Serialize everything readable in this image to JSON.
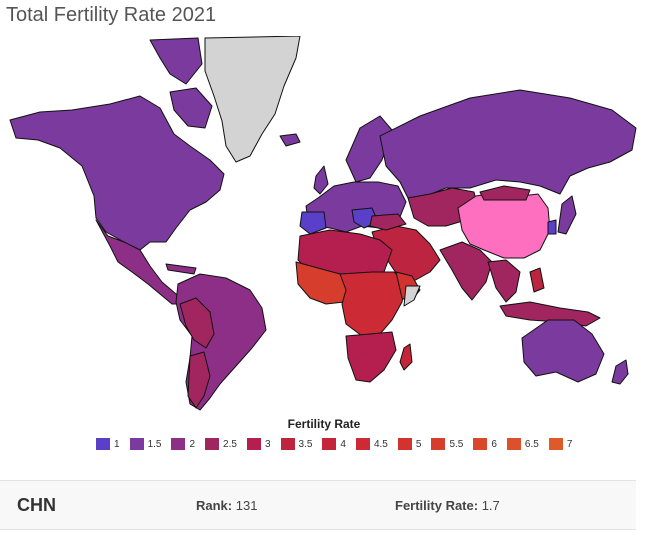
{
  "title": "Total Fertility Rate 2021",
  "legend": {
    "title": "Fertility Rate",
    "items": [
      {
        "label": "1",
        "color": "#5a3fc9"
      },
      {
        "label": "1.5",
        "color": "#7b3a9e"
      },
      {
        "label": "2",
        "color": "#8e2f87"
      },
      {
        "label": "2.5",
        "color": "#a1255e"
      },
      {
        "label": "3",
        "color": "#b51f4f"
      },
      {
        "label": "3.5",
        "color": "#bd2440"
      },
      {
        "label": "4",
        "color": "#c5253a"
      },
      {
        "label": "4.5",
        "color": "#cc2a34"
      },
      {
        "label": "5",
        "color": "#d2332e"
      },
      {
        "label": "5.5",
        "color": "#d63d2c"
      },
      {
        "label": "6",
        "color": "#da482b"
      },
      {
        "label": "6.5",
        "color": "#dc512b"
      },
      {
        "label": "7",
        "color": "#df5a2b"
      }
    ]
  },
  "colors": {
    "no_data": "#d3d3d3",
    "highlight": "#ff6fc0",
    "low": "#7b3a9e",
    "mid": "#a1255e",
    "high": "#c5253a",
    "very_high": "#d2332e"
  },
  "selected": {
    "code": "CHN",
    "rank_label": "Rank:",
    "rank": "131",
    "rate_label": "Fertility Rate:",
    "rate": "1.7"
  }
}
